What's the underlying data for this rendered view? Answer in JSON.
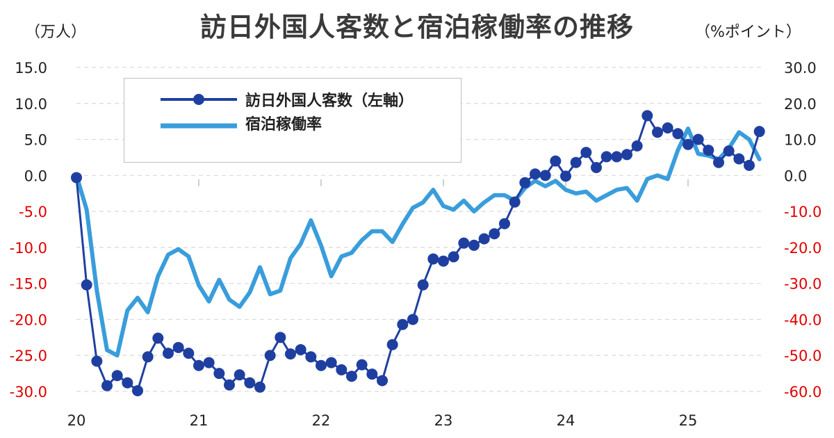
{
  "title": "訪日外国人客数と宿泊稼働率の推移",
  "units": {
    "left": "（万人）",
    "right": "（%ポイント）"
  },
  "colors": {
    "visitors": "#1f3fa0",
    "occupancy": "#3a9ddb",
    "neg_label": "#e00000",
    "pos_label": "#222222",
    "grid": "#d9d9d9"
  },
  "chart_data": {
    "type": "line",
    "title": "訪日外国人客数と宿泊稼働率の推移",
    "x_tick_labels": [
      "20",
      "21",
      "22",
      "23",
      "24",
      "25"
    ],
    "y_left_ticks": [
      "15.0",
      "10.0",
      "5.0",
      "0.0",
      "-5.0",
      "-10.0",
      "-15.0",
      "-20.0",
      "-25.0",
      "-30.0"
    ],
    "y_right_ticks": [
      "30.0",
      "20.0",
      "10.0",
      "0.0",
      "-10.0",
      "-20.0",
      "-30.0",
      "-40.0",
      "-50.0",
      "-60.0"
    ],
    "ylim_left": [
      -30,
      15
    ],
    "ylim_right": [
      -60,
      30
    ],
    "grid": true,
    "legend_position": "top-left",
    "series": [
      {
        "name": "訪日外国人客数（左軸）",
        "axis": "left",
        "marker": "circle",
        "values": [
          -0.3,
          -15.2,
          -25.8,
          -29.2,
          -27.8,
          -28.8,
          -29.9,
          -25.2,
          -22.6,
          -24.7,
          -23.9,
          -24.7,
          -26.4,
          -26.0,
          -27.5,
          -29.1,
          -27.7,
          -28.8,
          -29.4,
          -25.0,
          -22.5,
          -24.8,
          -24.2,
          -25.2,
          -26.4,
          -26.0,
          -27.0,
          -27.9,
          -26.3,
          -27.6,
          -28.5,
          -23.5,
          -20.7,
          -20.0,
          -15.2,
          -11.6,
          -11.9,
          -11.3,
          -9.4,
          -9.7,
          -8.8,
          -8.1,
          -6.7,
          -3.7,
          -1.0,
          0.2,
          0.0,
          2.0,
          -0.1,
          1.8,
          3.2,
          1.1,
          2.6,
          2.6,
          2.9,
          4.1,
          8.3,
          6.0,
          6.6,
          5.8,
          4.3,
          5.0,
          3.5,
          1.8,
          3.4,
          2.3,
          1.4,
          6.1
        ]
      },
      {
        "name": "宿泊稼働率",
        "axis": "right",
        "marker": "none",
        "values": [
          0.0,
          -9.5,
          -32.0,
          -48.5,
          -50.0,
          -37.5,
          -34.0,
          -38.0,
          -28.0,
          -22.0,
          -20.5,
          -22.5,
          -30.5,
          -35.0,
          -29.0,
          -34.5,
          -36.5,
          -32.5,
          -25.5,
          -33.0,
          -32.0,
          -23.0,
          -19.0,
          -12.5,
          -19.5,
          -28.0,
          -22.5,
          -21.5,
          -18.0,
          -15.5,
          -15.5,
          -18.5,
          -13.5,
          -9.0,
          -7.5,
          -4.0,
          -8.5,
          -9.5,
          -7.0,
          -10.0,
          -7.5,
          -5.5,
          -5.5,
          -7.0,
          -3.5,
          -1.5,
          -3.0,
          -1.5,
          -4.0,
          -5.0,
          -4.5,
          -7.0,
          -5.5,
          -4.0,
          -3.5,
          -7.0,
          -1.0,
          0.0,
          -1.0,
          7.0,
          13.0,
          6.0,
          5.5,
          4.5,
          7.5,
          12.0,
          10.0,
          4.5
        ]
      }
    ]
  }
}
